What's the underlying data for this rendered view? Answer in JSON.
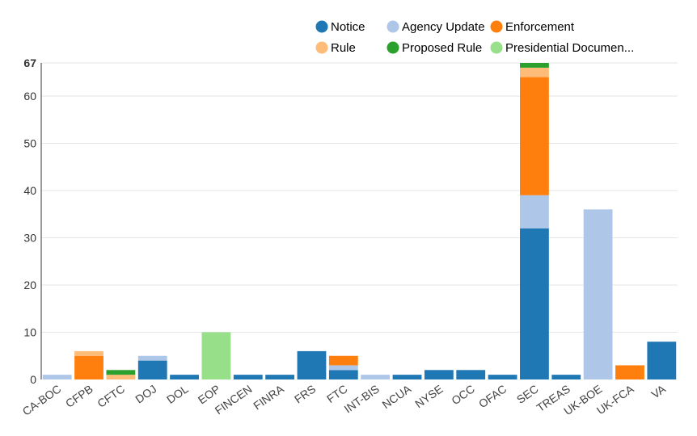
{
  "chart_data": {
    "type": "bar",
    "stacked": true,
    "categories": [
      "CA-BOC",
      "CFPB",
      "CFTC",
      "DOJ",
      "DOL",
      "EOP",
      "FINCEN",
      "FINRA",
      "FRS",
      "FTC",
      "INT-BIS",
      "NCUA",
      "NYSE",
      "OCC",
      "OFAC",
      "SEC",
      "TREAS",
      "UK-BOE",
      "UK-FCA",
      "VA"
    ],
    "series": [
      {
        "name": "Notice",
        "color": "#1f77b4",
        "values": [
          0,
          0,
          0,
          4,
          1,
          0,
          1,
          1,
          6,
          2,
          0,
          1,
          2,
          2,
          1,
          32,
          1,
          0,
          0,
          8
        ]
      },
      {
        "name": "Agency Update",
        "color": "#aec7e8",
        "values": [
          1,
          0,
          0,
          1,
          0,
          0,
          0,
          0,
          0,
          1,
          1,
          0,
          0,
          0,
          0,
          7,
          0,
          36,
          0,
          0
        ]
      },
      {
        "name": "Enforcement",
        "color": "#ff7f0e",
        "values": [
          0,
          5,
          0,
          0,
          0,
          0,
          0,
          0,
          0,
          2,
          0,
          0,
          0,
          0,
          0,
          25,
          0,
          0,
          3,
          0
        ]
      },
      {
        "name": "Rule",
        "color": "#ffbb78",
        "values": [
          0,
          1,
          1,
          0,
          0,
          0,
          0,
          0,
          0,
          0,
          0,
          0,
          0,
          0,
          0,
          2,
          0,
          0,
          0,
          0
        ]
      },
      {
        "name": "Proposed Rule",
        "color": "#2ca02c",
        "values": [
          0,
          0,
          1,
          0,
          0,
          0,
          0,
          0,
          0,
          0,
          0,
          0,
          0,
          0,
          0,
          1,
          0,
          0,
          0,
          0
        ]
      },
      {
        "name": "Presidential Documen...",
        "color": "#98df8a",
        "values": [
          0,
          0,
          0,
          0,
          0,
          10,
          0,
          0,
          0,
          0,
          0,
          0,
          0,
          0,
          0,
          0,
          0,
          0,
          0,
          0
        ]
      }
    ],
    "ylim": [
      0,
      67
    ],
    "yticks": [
      0,
      10,
      20,
      30,
      40,
      50,
      60,
      67
    ],
    "grid": true,
    "legend_position": "top-right",
    "xlabel": "",
    "ylabel": ""
  }
}
